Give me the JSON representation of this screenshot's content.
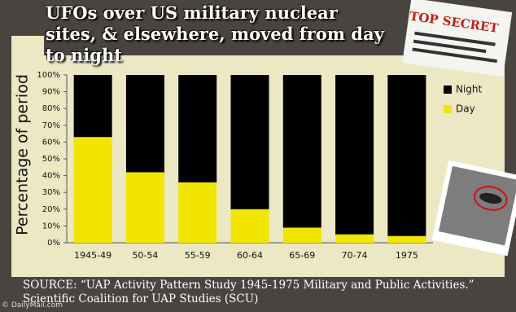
{
  "chart_data": {
    "type": "stacked_bar",
    "title": "UFOs over US military nuclear sites, & elsewhere, moved from day to night",
    "y_label": "Percentage of period",
    "categories": [
      "1945-49",
      "50-54",
      "55-59",
      "60-64",
      "65-69",
      "70-74",
      "1975"
    ],
    "series": [
      {
        "name": "Day",
        "color": "#f2e500",
        "values": [
          63,
          42,
          36,
          20,
          9,
          5,
          4
        ]
      },
      {
        "name": "Night",
        "color": "#000000",
        "values": [
          37,
          58,
          64,
          80,
          91,
          95,
          96
        ]
      }
    ],
    "legend_order": [
      "Night",
      "Day"
    ],
    "ylim": [
      0,
      100
    ],
    "yticks": [
      {
        "value": 0,
        "label": "0%"
      },
      {
        "value": 10,
        "label": "10%"
      },
      {
        "value": 20,
        "label": "20%"
      },
      {
        "value": 30,
        "label": "30%"
      },
      {
        "value": 40,
        "label": "40%"
      },
      {
        "value": 50,
        "label": "50%"
      },
      {
        "value": 60,
        "label": "60%"
      },
      {
        "value": 70,
        "label": "70%"
      },
      {
        "value": 80,
        "label": "80%"
      },
      {
        "value": 90,
        "label": "90%"
      },
      {
        "value": 100,
        "label": "100%"
      }
    ],
    "stamp": "TOP SECRET",
    "source": "SOURCE: “UAP Activity Pattern Study 1945-1975 Military and Public Activities.” Scientific Coalition for UAP Studies (SCU)",
    "watermark": "© DailyMail.com"
  }
}
